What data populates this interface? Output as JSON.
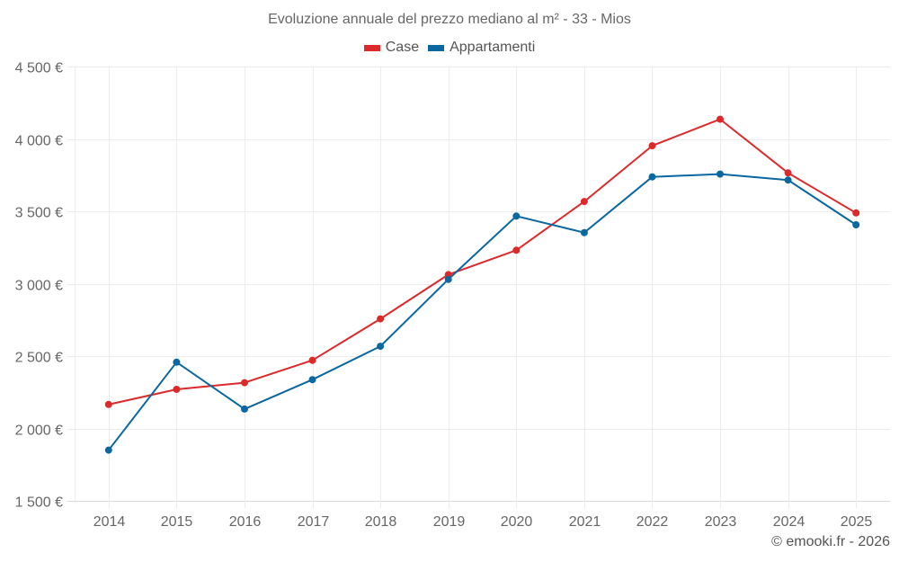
{
  "chart_data": {
    "type": "line",
    "title": "Evoluzione annuale del prezzo mediano al m² - 33 - Mios",
    "xlabel": "",
    "ylabel": "",
    "categories": [
      "2014",
      "2015",
      "2016",
      "2017",
      "2018",
      "2019",
      "2020",
      "2021",
      "2022",
      "2023",
      "2024",
      "2025"
    ],
    "series": [
      {
        "name": "Case",
        "color": "#dc2a2a",
        "values": [
          2166,
          2270,
          2316,
          2471,
          2757,
          3063,
          3231,
          3568,
          3953,
          4136,
          3765,
          3489
        ]
      },
      {
        "name": "Appartamenti",
        "color": "#0a67a0",
        "values": [
          1850,
          2458,
          2134,
          2337,
          2568,
          3030,
          3467,
          3353,
          3738,
          3757,
          3716,
          3407
        ]
      }
    ],
    "ylim": [
      1500,
      4500
    ],
    "yticks": [
      1500,
      2000,
      2500,
      3000,
      3500,
      4000,
      4500
    ],
    "ytick_labels": [
      "1 500 €",
      "2 000 €",
      "2 500 €",
      "3 000 €",
      "3 500 €",
      "4 000 €",
      "4 500 €"
    ],
    "grid": true,
    "legend_position": "top-center"
  },
  "credit": "© emooki.fr - 2026"
}
